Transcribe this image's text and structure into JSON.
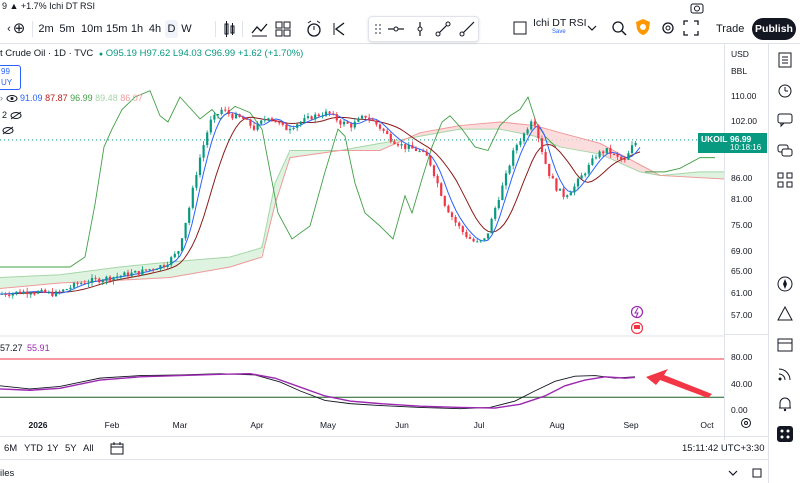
{
  "top_strip": "9 ▲ +1.7% Ichi DT RSI",
  "toolbar": {
    "intervals": [
      "2m",
      "5m",
      "10m",
      "15m",
      "1h",
      "4h",
      "D",
      "W"
    ],
    "layout_name": "Ichi DT RSI",
    "layout_status": "Save",
    "trade_label": "Trade",
    "publish_label": "Publish"
  },
  "legend": {
    "symbol": "t Crude Oil · 1D · TVC",
    "open": "O95.19",
    "high": "H97.62",
    "low": "L94.03",
    "close": "C96.99",
    "change": "+1.62 (+1.70%)",
    "sell_price": "99",
    "buy_label": "UY",
    "ichimoku_values": [
      "91.09",
      "87.87",
      "96.99",
      "89.48",
      "86.07"
    ],
    "count": "2"
  },
  "price_scale": {
    "currency": "USD",
    "unit": "BBL",
    "labels": [
      "110.00",
      "102.00",
      "86.00",
      "81.00",
      "75.00",
      "69.00",
      "65.00",
      "61.00",
      "57.00"
    ],
    "rsi_labels": [
      "80.00",
      "40.00",
      "0.00"
    ]
  },
  "price_badge": {
    "symbol": "UKOIL",
    "price": "96.99",
    "countdown": "10:18:16"
  },
  "rsi_legend": {
    "v1": "57.27",
    "v2": "55.91"
  },
  "time_axis": [
    "2026",
    "Feb",
    "Mar",
    "Apr",
    "May",
    "Jun",
    "Jul",
    "Aug",
    "Sep",
    "Oct"
  ],
  "range_bar": {
    "ranges": [
      "6M",
      "YTD",
      "1Y",
      "5Y",
      "All"
    ],
    "clock": "15:11:42 UTC+3:30"
  },
  "footer_text": "iles",
  "colors": {
    "up": "#089981",
    "down": "#f23645",
    "rsi_main": "#9c27b0",
    "kumo_bull": "#c8e6c9",
    "kumo_bear": "#f8c0c0"
  },
  "chart_data": {
    "type": "candlestick",
    "symbol": "UKOIL",
    "timeframe": "1D",
    "close_path_approx": [
      {
        "month": "Jan",
        "value": 61
      },
      {
        "month": "Feb",
        "value": 64
      },
      {
        "month": "Mar",
        "value": 78
      },
      {
        "month": "Mar-mid",
        "value": 104
      },
      {
        "month": "Apr",
        "value": 100
      },
      {
        "month": "May",
        "value": 104
      },
      {
        "month": "May-end",
        "value": 101
      },
      {
        "month": "Jun",
        "value": 90
      },
      {
        "month": "Jul",
        "value": 71
      },
      {
        "month": "Jul-end",
        "value": 100
      },
      {
        "month": "Aug",
        "value": 82
      },
      {
        "month": "Sep",
        "value": 97
      }
    ],
    "indicators": [
      "Ichimoku Cloud",
      "DT RSI"
    ],
    "rsi_levels": [
      80,
      20
    ]
  }
}
